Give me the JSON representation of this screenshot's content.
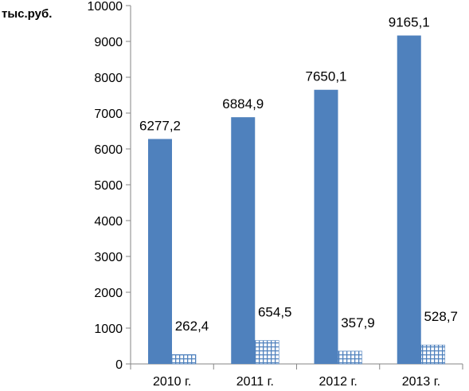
{
  "chart_data": {
    "type": "bar",
    "unit_label": "тыс.руб.",
    "categories": [
      "2010 г.",
      "2011 г.",
      "2012 г.",
      "2013 г."
    ],
    "series": [
      {
        "values": [
          6277.2,
          6884.9,
          7650.1,
          9165.1
        ],
        "labels": [
          "6277,2",
          "6884,9",
          "7650,1",
          "9165,1"
        ],
        "color": "#4f81bd",
        "fill": "solid"
      },
      {
        "values": [
          262.4,
          654.5,
          357.9,
          528.7
        ],
        "labels": [
          "262,4",
          "654,5",
          "357,9",
          "528,7"
        ],
        "color": "#4f81bd",
        "fill": "grid-pattern"
      }
    ],
    "ylim": [
      0,
      10000
    ],
    "yticks": [
      0,
      1000,
      2000,
      3000,
      4000,
      5000,
      6000,
      7000,
      8000,
      9000,
      10000
    ],
    "ytick_labels": [
      "0",
      "1000",
      "2000",
      "3000",
      "4000",
      "5000",
      "6000",
      "7000",
      "8000",
      "9000",
      "10000"
    ],
    "grid": false,
    "legend": "none"
  }
}
